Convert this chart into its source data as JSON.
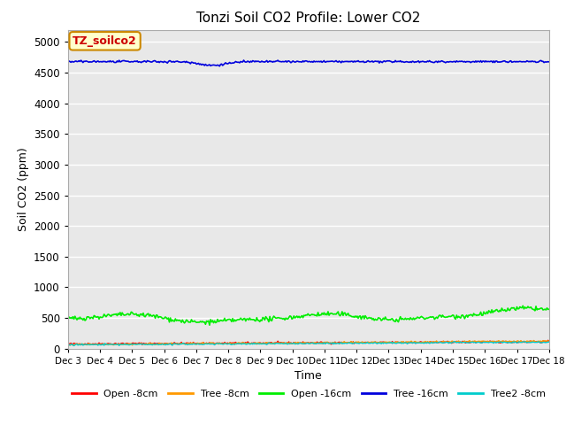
{
  "title": "Tonzi Soil CO2 Profile: Lower CO2",
  "xlabel": "Time",
  "ylabel": "Soil CO2 (ppm)",
  "ylim": [
    0,
    5200
  ],
  "yticks": [
    0,
    500,
    1000,
    1500,
    2000,
    2500,
    3000,
    3500,
    4000,
    4500,
    5000
  ],
  "fig_bg_color": "#ffffff",
  "plot_bg_color": "#e8e8e8",
  "grid_color": "#ffffff",
  "legend_label": "TZ_soilco2",
  "legend_box_facecolor": "#ffffcc",
  "legend_box_edgecolor": "#cc8800",
  "series": {
    "Open_8cm": {
      "color": "#ff0000",
      "label": "Open -8cm"
    },
    "Tree_8cm": {
      "color": "#ff9900",
      "label": "Tree -8cm"
    },
    "Open_16cm": {
      "color": "#00ee00",
      "label": "Open -16cm"
    },
    "Tree_16cm": {
      "color": "#0000dd",
      "label": "Tree -16cm"
    },
    "Tree2_8cm": {
      "color": "#00cccc",
      "label": "Tree2 -8cm"
    }
  },
  "order": [
    "Open_8cm",
    "Tree_8cm",
    "Open_16cm",
    "Tree_16cm",
    "Tree2_8cm"
  ],
  "n_points": 480,
  "x_start": 3,
  "x_end": 18,
  "x_tick_positions": [
    3,
    4,
    5,
    6,
    7,
    8,
    9,
    10,
    11,
    12,
    13,
    14,
    15,
    16,
    17,
    18
  ],
  "x_tick_labels": [
    "Dec 3",
    "Dec 4",
    "Dec 5",
    "Dec 6",
    "Dec 7",
    "Dec 8",
    "Dec 9",
    "Dec 10",
    "Dec 11",
    "Dec 12",
    "Dec 13",
    "Dec 14",
    "Dec 15",
    "Dec 16",
    "Dec 17",
    "Dec 18"
  ]
}
